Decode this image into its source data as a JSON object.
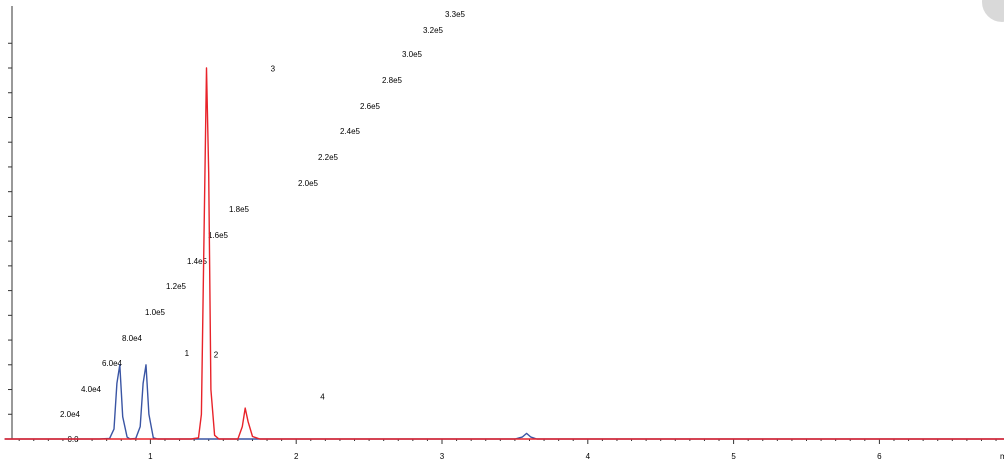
{
  "chart_data": {
    "type": "line",
    "title": "",
    "xlabel": "",
    "ylabel": "",
    "xlim": [
      0,
      6.9
    ],
    "ylim": [
      0,
      330000
    ],
    "x_tick_labels": [
      "1",
      "2",
      "3",
      "4",
      "5",
      "6"
    ],
    "x_unit_label": "m",
    "y_tick_labels": [
      "0.0",
      "2.0e4",
      "4.0e4",
      "6.0e4",
      "8.0e4",
      "1.0e5",
      "1.2e5",
      "1.4e5",
      "1.6e5",
      "1.8e5",
      "2.0e5",
      "2.2e5",
      "2.4e5",
      "2.6e5",
      "2.8e5",
      "3.0e5",
      "3.2e5",
      "3.3e5"
    ],
    "grid": false,
    "colors": {
      "series_blue": "#3a55a4",
      "series_red": "#e8232a",
      "axis": "#333333"
    },
    "series": [
      {
        "color": "#3a55a4",
        "x": [
          0,
          0.65,
          0.72,
          0.75,
          0.77,
          0.79,
          0.81,
          0.84,
          0.86,
          0.9,
          0.93,
          0.95,
          0.97,
          0.99,
          1.02,
          1.05,
          1.3,
          2.5,
          3.5,
          3.55,
          3.58,
          3.61,
          3.65,
          4.5,
          5.5,
          6.9
        ],
        "y": [
          0,
          0,
          500,
          8000,
          45000,
          60000,
          18000,
          1500,
          0,
          500,
          10000,
          45000,
          60000,
          20000,
          1000,
          0,
          0,
          0,
          0,
          1500,
          4500,
          1500,
          0,
          0,
          0,
          0
        ]
      },
      {
        "color": "#e8232a",
        "x": [
          0,
          1.28,
          1.33,
          1.35,
          1.37,
          1.385,
          1.4,
          1.415,
          1.44,
          1.47,
          1.6,
          1.63,
          1.65,
          1.67,
          1.7,
          1.75,
          2.5,
          3.5,
          4.5,
          5.5,
          6.9
        ],
        "y": [
          0,
          0,
          1000,
          20000,
          180000,
          300000,
          215000,
          40000,
          3000,
          0,
          0,
          10000,
          25000,
          14000,
          2000,
          0,
          0,
          0,
          0,
          0,
          0
        ]
      }
    ],
    "annotations": [
      {
        "text": "1",
        "x": 1.25,
        "y": 67000
      },
      {
        "text": "2",
        "x": 1.45,
        "y": 66000
      },
      {
        "text": "3",
        "x": 1.84,
        "y": 297000
      },
      {
        "text": "4",
        "x": 2.18,
        "y": 32000
      }
    ]
  }
}
